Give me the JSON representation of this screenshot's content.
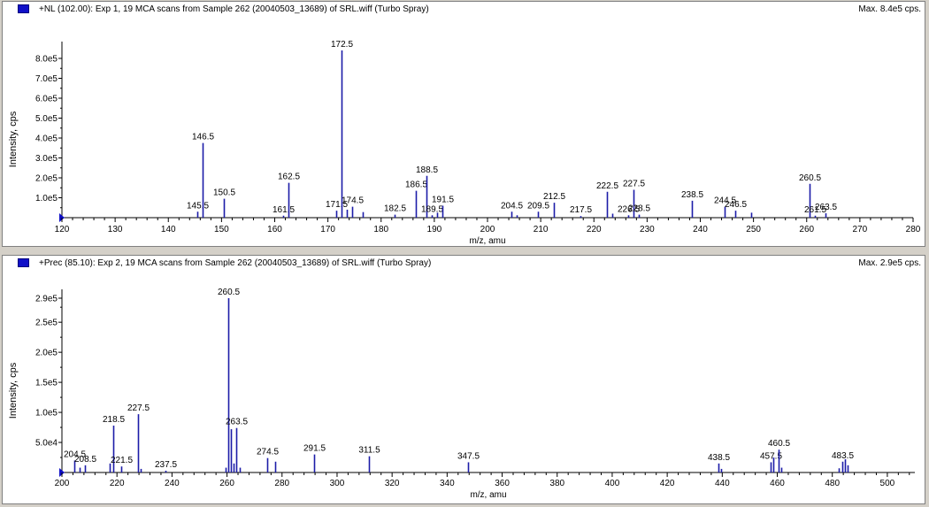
{
  "colors": {
    "bar": "#1c1ca8",
    "axis": "#000000",
    "panel_bg": "#ffffff",
    "window_bg": "#d4d0c8",
    "marker": "#1010c8"
  },
  "panels": [
    {
      "title": "+NL (102.00): Exp 1, 19 MCA scans from Sample 262 (20040503_13689) of SRL.wiff (Turbo Spray)",
      "max_label": "Max. 8.4e5 cps."
    },
    {
      "title": "+Prec (85.10): Exp 2, 19 MCA scans from Sample 262 (20040503_13689) of SRL.wiff (Turbo Spray)",
      "max_label": "Max. 2.9e5 cps."
    }
  ],
  "chart_data": [
    {
      "type": "bar",
      "xlabel": "m/z, amu",
      "ylabel": "Intensity, cps",
      "xlim": [
        120,
        280
      ],
      "ylim": [
        0,
        840000
      ],
      "xticks": [
        120,
        130,
        140,
        150,
        160,
        170,
        180,
        190,
        200,
        210,
        220,
        230,
        240,
        250,
        260,
        270,
        280
      ],
      "yticks": [
        {
          "value": 100000,
          "label": "1.0e5"
        },
        {
          "value": 200000,
          "label": "2.0e5"
        },
        {
          "value": 300000,
          "label": "3.0e5"
        },
        {
          "value": 400000,
          "label": "4.0e5"
        },
        {
          "value": 500000,
          "label": "5.0e5"
        },
        {
          "value": 600000,
          "label": "6.0e5"
        },
        {
          "value": 700000,
          "label": "7.0e5"
        },
        {
          "value": 800000,
          "label": "8.0e5"
        }
      ],
      "peaks": [
        {
          "x": 145.5,
          "y": 30000,
          "label": "145.5"
        },
        {
          "x": 146.5,
          "y": 375000,
          "label": "146.5"
        },
        {
          "x": 150.5,
          "y": 95000,
          "label": "150.5"
        },
        {
          "x": 161.5,
          "y": 10000,
          "label": "161.5"
        },
        {
          "x": 162.5,
          "y": 175000,
          "label": "162.5"
        },
        {
          "x": 171.5,
          "y": 35000,
          "label": "171.5"
        },
        {
          "x": 172.5,
          "y": 840000,
          "label": "172.5"
        },
        {
          "x": 173.5,
          "y": 40000
        },
        {
          "x": 174.5,
          "y": 55000,
          "label": "174.5"
        },
        {
          "x": 176.5,
          "y": 28000
        },
        {
          "x": 182.5,
          "y": 15000,
          "label": "182.5"
        },
        {
          "x": 186.5,
          "y": 135000,
          "label": "186.5"
        },
        {
          "x": 188.5,
          "y": 210000,
          "label": "188.5"
        },
        {
          "x": 189.5,
          "y": 12000,
          "label": "189.5"
        },
        {
          "x": 190.5,
          "y": 25000
        },
        {
          "x": 191.5,
          "y": 60000,
          "label": "191.5"
        },
        {
          "x": 204.5,
          "y": 30000,
          "label": "204.5"
        },
        {
          "x": 205.5,
          "y": 12000
        },
        {
          "x": 209.5,
          "y": 30000,
          "label": "209.5"
        },
        {
          "x": 212.5,
          "y": 75000,
          "label": "212.5"
        },
        {
          "x": 217.5,
          "y": 8000,
          "label": "217.5"
        },
        {
          "x": 222.5,
          "y": 130000,
          "label": "222.5"
        },
        {
          "x": 223.5,
          "y": 20000
        },
        {
          "x": 226.5,
          "y": 12000,
          "label": "226.5"
        },
        {
          "x": 227.5,
          "y": 140000,
          "label": "227.5"
        },
        {
          "x": 228.5,
          "y": 15000,
          "label": "228.5"
        },
        {
          "x": 238.5,
          "y": 85000,
          "label": "238.5"
        },
        {
          "x": 244.5,
          "y": 55000,
          "label": "244.5"
        },
        {
          "x": 246.5,
          "y": 35000,
          "label": "246.5"
        },
        {
          "x": 249.5,
          "y": 25000
        },
        {
          "x": 260.5,
          "y": 170000,
          "label": "260.5"
        },
        {
          "x": 261.5,
          "y": 10000,
          "label": "261.5"
        },
        {
          "x": 263.5,
          "y": 22000,
          "label": "263.5"
        }
      ]
    },
    {
      "type": "bar",
      "xlabel": "m/z, amu",
      "ylabel": "Intensity, cps",
      "xlim": [
        200,
        510
      ],
      "ylim": [
        0,
        290000
      ],
      "xticks": [
        200,
        220,
        240,
        260,
        280,
        300,
        320,
        340,
        360,
        380,
        400,
        420,
        440,
        460,
        480,
        500
      ],
      "yticks": [
        {
          "value": 50000,
          "label": "5.0e4"
        },
        {
          "value": 100000,
          "label": "1.0e5"
        },
        {
          "value": 150000,
          "label": "1.5e5"
        },
        {
          "value": 200000,
          "label": "2.0e5"
        },
        {
          "value": 250000,
          "label": "2.5e5"
        },
        {
          "value": 290000,
          "label": "2.9e5"
        }
      ],
      "peaks": [
        {
          "x": 204.5,
          "y": 20000,
          "label": "204.5"
        },
        {
          "x": 206.5,
          "y": 8000
        },
        {
          "x": 208.5,
          "y": 12000,
          "label": "208.5"
        },
        {
          "x": 217.5,
          "y": 15000
        },
        {
          "x": 218.5,
          "y": 78000,
          "label": "218.5"
        },
        {
          "x": 221.5,
          "y": 10000,
          "label": "221.5"
        },
        {
          "x": 227.5,
          "y": 97000,
          "label": "227.5"
        },
        {
          "x": 228.5,
          "y": 6000
        },
        {
          "x": 237.5,
          "y": 3000,
          "label": "237.5"
        },
        {
          "x": 259.5,
          "y": 8000
        },
        {
          "x": 260.5,
          "y": 290000,
          "label": "260.5"
        },
        {
          "x": 261.5,
          "y": 72000
        },
        {
          "x": 262.5,
          "y": 15000
        },
        {
          "x": 263.5,
          "y": 74000,
          "label": "263.5"
        },
        {
          "x": 264.5,
          "y": 8000
        },
        {
          "x": 274.5,
          "y": 24000,
          "label": "274.5"
        },
        {
          "x": 277.5,
          "y": 18000
        },
        {
          "x": 291.5,
          "y": 30000,
          "label": "291.5"
        },
        {
          "x": 311.5,
          "y": 27000,
          "label": "311.5"
        },
        {
          "x": 347.5,
          "y": 17000,
          "label": "347.5"
        },
        {
          "x": 438.5,
          "y": 15000,
          "label": "438.5"
        },
        {
          "x": 439.5,
          "y": 6000
        },
        {
          "x": 457.5,
          "y": 17000,
          "label": "457.5"
        },
        {
          "x": 458.5,
          "y": 25000
        },
        {
          "x": 460.5,
          "y": 38000,
          "label": "460.5"
        },
        {
          "x": 461.5,
          "y": 8000
        },
        {
          "x": 482.5,
          "y": 7000
        },
        {
          "x": 483.5,
          "y": 18000,
          "label": "483.5"
        },
        {
          "x": 484.5,
          "y": 22000
        },
        {
          "x": 485.5,
          "y": 12000
        }
      ]
    }
  ]
}
